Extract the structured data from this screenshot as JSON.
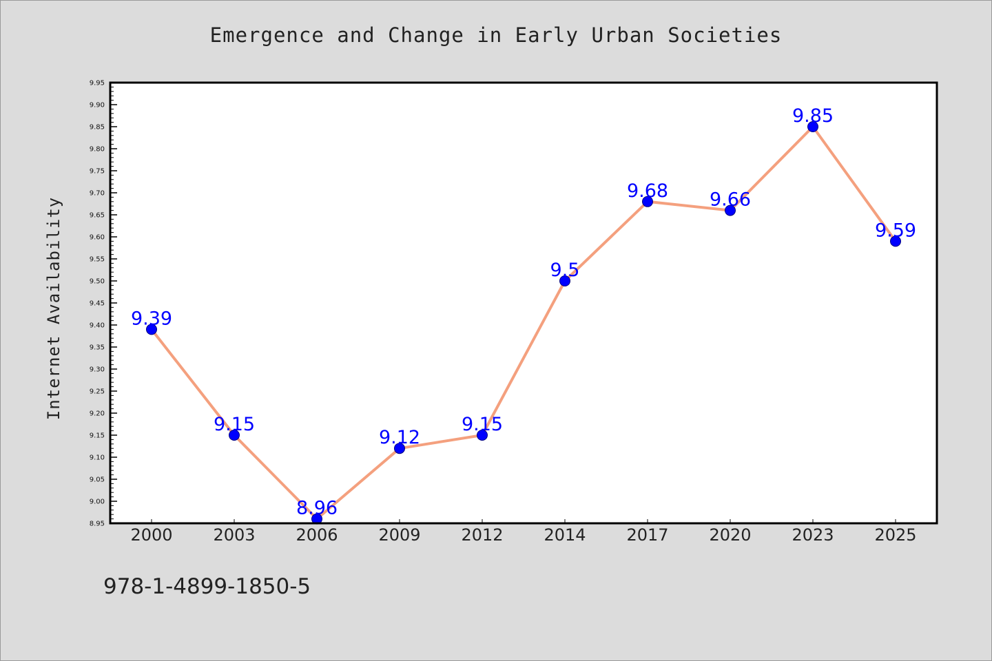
{
  "chart_data": {
    "type": "line",
    "title": "Emergence and Change in Early Urban Societies",
    "xlabel": "",
    "ylabel": "Internet Availability",
    "categories": [
      "2000",
      "2003",
      "2006",
      "2009",
      "2012",
      "2014",
      "2017",
      "2020",
      "2023",
      "2025"
    ],
    "series": [
      {
        "values": [
          9.39,
          9.15,
          8.96,
          9.12,
          9.15,
          9.5,
          9.68,
          9.66,
          9.85,
          9.59
        ],
        "data_labels": [
          "9.39",
          "9.15",
          "8.96",
          "9.12",
          "9.15",
          "9.5",
          "9.68",
          "9.66",
          "9.85",
          "9.59"
        ],
        "line_color": "#f4a07e",
        "marker_color": "#0000ff"
      }
    ],
    "ylim": [
      8.95,
      9.95
    ],
    "yticks": [
      "8.95",
      "9.00",
      "9.05",
      "9.10",
      "9.15",
      "9.20",
      "9.25",
      "9.30",
      "9.35",
      "9.40",
      "9.45",
      "9.50",
      "9.55",
      "9.60",
      "9.65",
      "9.70",
      "9.75",
      "9.80",
      "9.85",
      "9.90",
      "9.95"
    ],
    "grid": false,
    "legend": "none",
    "background": "#dcdcdc",
    "plot_background": "#ffffff"
  },
  "footer": {
    "isbn": "978-1-4899-1850-5"
  }
}
